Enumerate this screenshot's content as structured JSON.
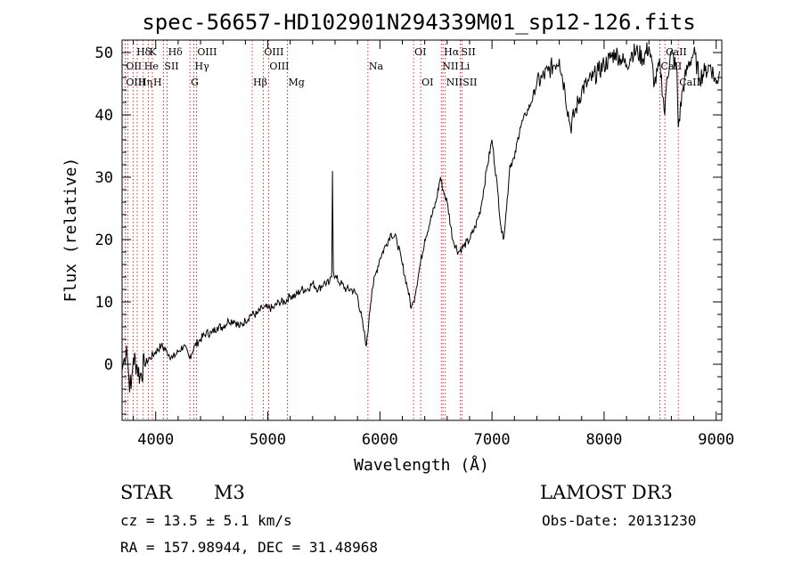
{
  "chart_data": {
    "type": "line",
    "title": "spec-56657-HD102901N294339M01_sp12-126.fits",
    "xlabel": "Wavelength (Å)",
    "ylabel": "Flux (relative)",
    "xlim": [
      3700,
      9050
    ],
    "ylim": [
      -9,
      52
    ],
    "xticks": [
      4000,
      5000,
      6000,
      7000,
      8000,
      9000
    ],
    "yticks": [
      0,
      10,
      20,
      30,
      40,
      50
    ],
    "series": [
      {
        "name": "flux",
        "x": [
          3700,
          3720,
          3740,
          3760,
          3780,
          3800,
          3830,
          3860,
          3900,
          3950,
          4000,
          4050,
          4100,
          4150,
          4200,
          4250,
          4300,
          4350,
          4400,
          4450,
          4500,
          4550,
          4600,
          4650,
          4700,
          4750,
          4800,
          4850,
          4900,
          4950,
          5000,
          5050,
          5100,
          5150,
          5200,
          5250,
          5300,
          5350,
          5400,
          5450,
          5500,
          5550,
          5570,
          5577,
          5585,
          5600,
          5650,
          5700,
          5750,
          5800,
          5850,
          5880,
          5893,
          5905,
          5930,
          5970,
          6000,
          6050,
          6100,
          6150,
          6200,
          6250,
          6280,
          6300,
          6350,
          6400,
          6450,
          6500,
          6540,
          6563,
          6580,
          6600,
          6650,
          6700,
          6750,
          6800,
          6850,
          6900,
          6950,
          7000,
          7050,
          7080,
          7100,
          7130,
          7160,
          7200,
          7250,
          7300,
          7350,
          7400,
          7450,
          7500,
          7550,
          7600,
          7650,
          7700,
          7750,
          7800,
          7850,
          7900,
          7950,
          8000,
          8050,
          8100,
          8150,
          8200,
          8250,
          8300,
          8350,
          8400,
          8450,
          8500,
          8542,
          8560,
          8600,
          8650,
          8662,
          8700,
          8750,
          8800,
          8850,
          8900,
          8950,
          9000,
          9030
        ],
        "y": [
          -1,
          1,
          3,
          -2,
          -4,
          1,
          0,
          -2,
          0,
          1,
          2,
          3,
          2,
          1,
          2,
          3,
          1,
          3,
          4,
          5,
          5,
          6,
          6,
          7,
          7,
          6,
          7,
          8,
          8,
          9,
          9,
          9,
          10,
          10,
          11,
          11,
          12,
          12,
          13,
          12,
          13,
          13,
          14,
          31,
          15,
          14,
          13,
          12,
          12,
          11,
          6,
          3,
          5,
          8,
          12,
          15,
          17,
          19,
          21,
          20,
          16,
          12,
          9,
          10,
          15,
          20,
          23,
          26,
          30,
          28,
          27,
          26,
          20,
          18,
          19,
          20,
          22,
          25,
          31,
          36,
          28,
          22,
          20,
          25,
          32,
          33,
          38,
          40,
          42,
          45,
          46,
          47,
          48,
          49,
          44,
          38,
          41,
          44,
          45,
          46,
          47,
          48,
          49,
          50,
          49,
          48,
          50,
          50,
          49,
          51,
          45,
          48,
          40,
          46,
          50,
          47,
          38,
          44,
          48,
          50,
          46,
          47,
          48,
          45,
          47
        ]
      }
    ],
    "spectral_lines": [
      {
        "label": "Hδ",
        "wavelength": 3820,
        "row": 0
      },
      {
        "label": "K",
        "wavelength": 3934,
        "row": 0
      },
      {
        "label": "Hδ",
        "wavelength": 4102,
        "row": 0
      },
      {
        "label": "OIII",
        "wavelength": 4363,
        "row": 0
      },
      {
        "label": "OIII",
        "wavelength": 4959,
        "row": 0
      },
      {
        "label": "OI",
        "wavelength": 6300,
        "row": 0
      },
      {
        "label": "Hα",
        "wavelength": 6563,
        "row": 0
      },
      {
        "label": "SII",
        "wavelength": 6717,
        "row": 0
      },
      {
        "label": "CaII",
        "wavelength": 8542,
        "row": 0
      },
      {
        "label": "OII",
        "wavelength": 3727,
        "row": 1
      },
      {
        "label": "He",
        "wavelength": 3889,
        "row": 1
      },
      {
        "label": "SII",
        "wavelength": 4069,
        "row": 1
      },
      {
        "label": "Hγ",
        "wavelength": 4340,
        "row": 1
      },
      {
        "label": "OIII",
        "wavelength": 5007,
        "row": 1
      },
      {
        "label": "Na",
        "wavelength": 5893,
        "row": 1
      },
      {
        "label": "NII",
        "wavelength": 6548,
        "row": 1
      },
      {
        "label": "Li",
        "wavelength": 6708,
        "row": 1
      },
      {
        "label": "CaII",
        "wavelength": 8498,
        "row": 1
      },
      {
        "label": "OIII",
        "wavelength": 3727,
        "row": 2
      },
      {
        "label": "Hη",
        "wavelength": 3835,
        "row": 2
      },
      {
        "label": "H",
        "wavelength": 3970,
        "row": 2
      },
      {
        "label": "G",
        "wavelength": 4305,
        "row": 2
      },
      {
        "label": "Hβ",
        "wavelength": 4861,
        "row": 2
      },
      {
        "label": "Mg",
        "wavelength": 5175,
        "row": 2
      },
      {
        "label": "OI",
        "wavelength": 6364,
        "row": 2
      },
      {
        "label": "NII",
        "wavelength": 6584,
        "row": 2
      },
      {
        "label": "SII",
        "wavelength": 6731,
        "row": 2
      },
      {
        "label": "CaII",
        "wavelength": 8662,
        "row": 2
      }
    ],
    "dotted_line_wavelengths": [
      3727,
      3750,
      3798,
      3835,
      3889,
      3934,
      3970,
      4069,
      4102,
      4305,
      4340,
      4363,
      4861,
      4959,
      5007,
      5175,
      5893,
      6300,
      6364,
      6548,
      6563,
      6584,
      6717,
      6731,
      8498,
      8542,
      8662
    ],
    "colors": {
      "curve": "#000000",
      "line_markers": "#cc0000",
      "axes": "#000000"
    }
  },
  "footer": {
    "class_label": "STAR",
    "subclass": "M3",
    "survey": "LAMOST DR3",
    "cz": "cz = 13.5 ± 5.1 km/s",
    "obs_date": "Obs-Date: 20131230",
    "coords": "RA = 157.98944, DEC =  31.48968"
  }
}
